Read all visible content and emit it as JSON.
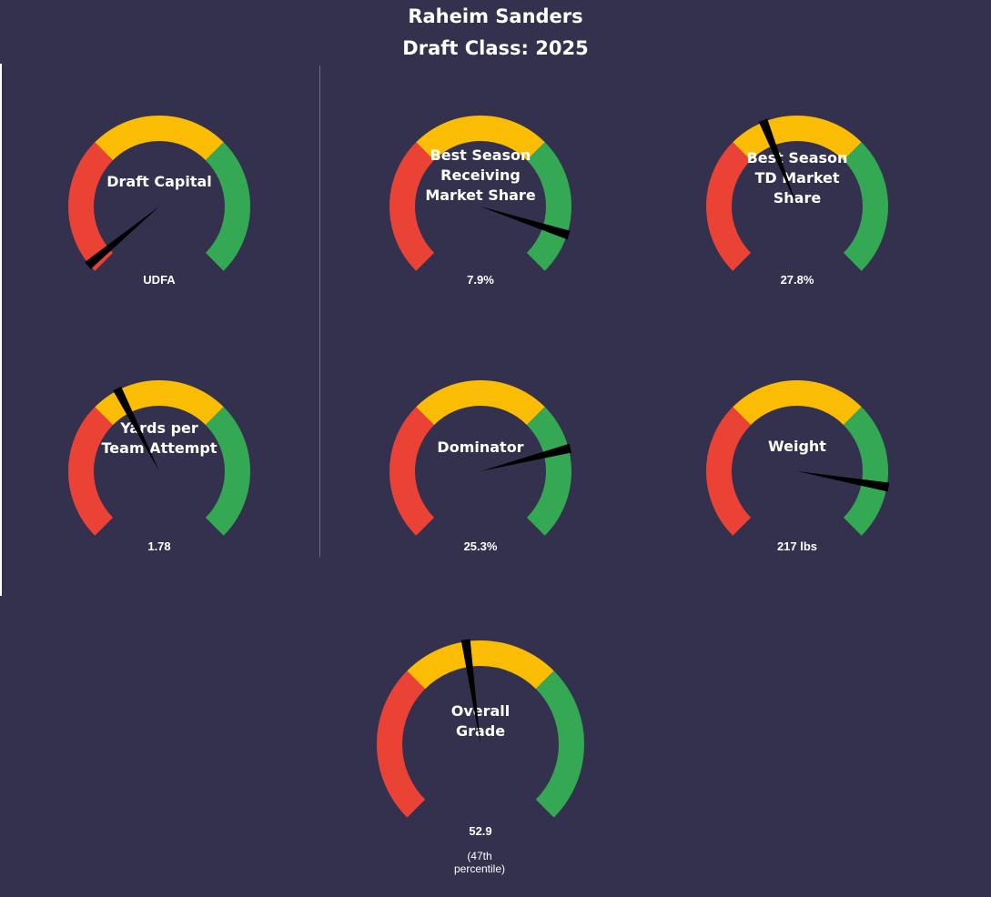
{
  "header": {
    "title": "Raheim Sanders",
    "subtitle": "Draft Class: 2025"
  },
  "colors": {
    "background": "#33314e",
    "low": "#ea4335",
    "mid": "#fbbc04",
    "high": "#34a853",
    "needle": "#000000",
    "text": "#ffffff"
  },
  "chart_data": [
    {
      "type": "gauge",
      "label": [
        "Draft Capital"
      ],
      "value_text": "UDFA",
      "percentile": 2
    },
    {
      "type": "gauge",
      "label": [
        "Best Season",
        "Receiving",
        "Market Share"
      ],
      "value_text": "7.9%",
      "percentile": 90
    },
    {
      "type": "gauge",
      "label": [
        "Best Season",
        "TD Market",
        "Share"
      ],
      "value_text": "27.8%",
      "percentile": 42
    },
    {
      "type": "gauge",
      "label": [
        "Yards per",
        "Team Attempt"
      ],
      "value_text": "1.78",
      "percentile": 40
    },
    {
      "type": "gauge",
      "label": [
        "Dominator"
      ],
      "value_text": "25.3%",
      "percentile": 78
    },
    {
      "type": "gauge",
      "label": [
        "Weight"
      ],
      "value_text": "217 lbs",
      "percentile": 87
    },
    {
      "type": "gauge",
      "label": [
        "Overall",
        "Grade"
      ],
      "value_text": "52.9",
      "sub_text": [
        "(47th",
        "percentile)"
      ],
      "percentile": 47
    }
  ]
}
